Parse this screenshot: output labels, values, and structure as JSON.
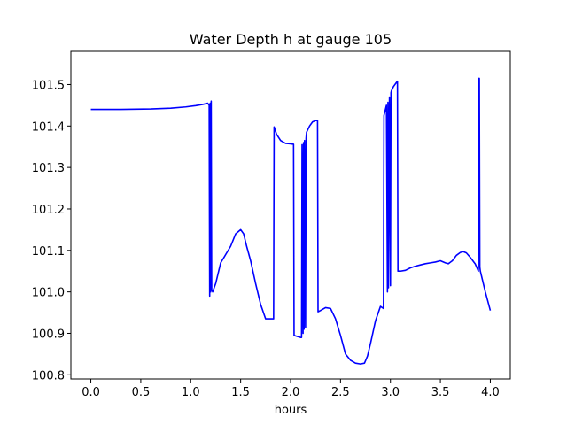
{
  "chart_data": {
    "type": "line",
    "title": "Water Depth h at gauge 105",
    "xlabel": "hours",
    "ylabel": "",
    "xlim": [
      -0.2,
      4.2
    ],
    "ylim": [
      100.79,
      101.58
    ],
    "xticks": [
      {
        "value": 0.0,
        "label": "0.0"
      },
      {
        "value": 0.5,
        "label": "0.5"
      },
      {
        "value": 1.0,
        "label": "1.0"
      },
      {
        "value": 1.5,
        "label": "1.5"
      },
      {
        "value": 2.0,
        "label": "2.0"
      },
      {
        "value": 2.5,
        "label": "2.5"
      },
      {
        "value": 3.0,
        "label": "3.0"
      },
      {
        "value": 3.5,
        "label": "3.5"
      },
      {
        "value": 4.0,
        "label": "4.0"
      }
    ],
    "yticks": [
      {
        "value": 100.8,
        "label": "100.8"
      },
      {
        "value": 100.9,
        "label": "100.9"
      },
      {
        "value": 101.0,
        "label": "101.0"
      },
      {
        "value": 101.1,
        "label": "101.1"
      },
      {
        "value": 101.2,
        "label": "101.2"
      },
      {
        "value": 101.3,
        "label": "101.3"
      },
      {
        "value": 101.4,
        "label": "101.4"
      },
      {
        "value": 101.5,
        "label": "101.5"
      }
    ],
    "grid": false,
    "line_color": "#0000ff",
    "series": [
      {
        "x": [
          0.0,
          0.3,
          0.6,
          0.8,
          0.95,
          1.05,
          1.12,
          1.17,
          1.185,
          1.19,
          1.195,
          1.2,
          1.205,
          1.21,
          1.22,
          1.25,
          1.3,
          1.35,
          1.4,
          1.45,
          1.5,
          1.53,
          1.56,
          1.6,
          1.65,
          1.7,
          1.75,
          1.8,
          1.83,
          1.835,
          1.86,
          1.9,
          1.95,
          2.0,
          2.03,
          2.035,
          2.06,
          2.1,
          2.11,
          2.115,
          2.125,
          2.13,
          2.135,
          2.14,
          2.15,
          2.155,
          2.16,
          2.19,
          2.22,
          2.25,
          2.27,
          2.275,
          2.3,
          2.35,
          2.4,
          2.45,
          2.5,
          2.55,
          2.6,
          2.65,
          2.7,
          2.74,
          2.77,
          2.8,
          2.85,
          2.9,
          2.93,
          2.935,
          2.95,
          2.96,
          2.97,
          2.975,
          2.98,
          2.99,
          3.0,
          3.005,
          3.01,
          3.03,
          3.06,
          3.07,
          3.075,
          3.1,
          3.15,
          3.2,
          3.25,
          3.3,
          3.35,
          3.4,
          3.45,
          3.5,
          3.55,
          3.58,
          3.62,
          3.66,
          3.7,
          3.73,
          3.76,
          3.8,
          3.85,
          3.88,
          3.885,
          3.89,
          3.895,
          3.9,
          3.95,
          4.0
        ],
        "y": [
          101.44,
          101.44,
          101.441,
          101.443,
          101.446,
          101.449,
          101.452,
          101.455,
          101.45,
          100.99,
          101.455,
          101.0,
          101.46,
          101.005,
          101.0,
          101.02,
          101.07,
          101.09,
          101.11,
          101.14,
          101.15,
          101.14,
          101.11,
          101.075,
          101.02,
          100.97,
          100.935,
          100.935,
          100.935,
          101.398,
          101.38,
          101.365,
          101.358,
          101.357,
          101.356,
          100.895,
          100.893,
          100.89,
          100.89,
          101.355,
          100.9,
          101.36,
          100.91,
          101.365,
          100.915,
          101.37,
          101.385,
          101.4,
          101.41,
          101.413,
          101.413,
          100.952,
          100.955,
          100.962,
          100.96,
          100.935,
          100.895,
          100.85,
          100.835,
          100.828,
          100.826,
          100.828,
          100.845,
          100.875,
          100.93,
          100.965,
          100.96,
          101.425,
          101.44,
          101.45,
          101.0,
          101.457,
          101.01,
          101.47,
          101.015,
          101.48,
          101.485,
          101.495,
          101.505,
          101.508,
          101.05,
          101.05,
          101.052,
          101.058,
          101.062,
          101.065,
          101.068,
          101.07,
          101.072,
          101.075,
          101.07,
          101.068,
          101.075,
          101.088,
          101.095,
          101.097,
          101.094,
          101.083,
          101.067,
          101.05,
          101.515,
          101.515,
          101.06,
          101.05,
          101.0,
          100.955
        ]
      }
    ]
  }
}
